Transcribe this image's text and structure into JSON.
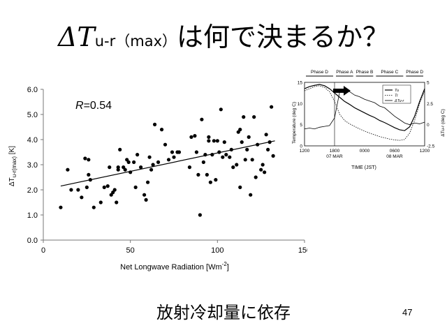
{
  "slide": {
    "title_delta": "ΔT",
    "title_subscript": "u-r（max）",
    "title_rest": "は何で決まるか？",
    "subtitle": "放射冷却量に依存",
    "page_number": "47"
  },
  "chart_data": [
    {
      "type": "scatter",
      "title": "",
      "annotation": "R=0.54",
      "annotation_R": "R",
      "annotation_value": "=0.54",
      "xlabel": "Net Longwave Radiation [Wm",
      "xlabel_sup": "-2",
      "xlabel_end": "]",
      "ylabel_prefix": "ΔT",
      "ylabel_sub": "u-r(max)",
      "ylabel_suffix": " [K]",
      "xlim": [
        0,
        150
      ],
      "ylim": [
        0.0,
        6.0
      ],
      "xticks": [
        "0",
        "50",
        "100",
        "150"
      ],
      "yticks": [
        "0.0",
        "1.0",
        "2.0",
        "3.0",
        "4.0",
        "5.0",
        "6.0"
      ],
      "grid": false,
      "trendline": {
        "x": [
          10,
          133
        ],
        "y": [
          2.15,
          3.95
        ]
      },
      "points": [
        [
          10,
          1.3
        ],
        [
          14,
          2.8
        ],
        [
          16,
          2.0
        ],
        [
          20,
          2.0
        ],
        [
          22,
          1.7
        ],
        [
          24,
          3.25
        ],
        [
          25,
          2.1
        ],
        [
          26,
          3.2
        ],
        [
          26,
          2.6
        ],
        [
          27,
          2.4
        ],
        [
          29,
          1.3
        ],
        [
          33,
          1.5
        ],
        [
          35,
          2.1
        ],
        [
          37,
          2.15
        ],
        [
          38,
          2.9
        ],
        [
          39,
          1.8
        ],
        [
          40,
          1.9
        ],
        [
          41,
          2.0
        ],
        [
          42,
          1.5
        ],
        [
          43,
          2.8
        ],
        [
          43,
          2.9
        ],
        [
          44,
          3.6
        ],
        [
          46,
          2.9
        ],
        [
          47,
          2.8
        ],
        [
          48,
          3.2
        ],
        [
          49,
          3.1
        ],
        [
          50,
          2.7
        ],
        [
          52,
          3.1
        ],
        [
          53,
          2.1
        ],
        [
          54,
          3.4
        ],
        [
          56,
          2.9
        ],
        [
          58,
          1.8
        ],
        [
          59,
          1.6
        ],
        [
          60,
          2.3
        ],
        [
          61,
          3.3
        ],
        [
          62,
          2.8
        ],
        [
          63,
          3.0
        ],
        [
          64,
          4.6
        ],
        [
          66,
          3.1
        ],
        [
          68,
          4.4
        ],
        [
          70,
          3.8
        ],
        [
          72,
          3.2
        ],
        [
          74,
          3.5
        ],
        [
          75,
          3.3
        ],
        [
          77,
          3.5
        ],
        [
          78,
          3.5
        ],
        [
          84,
          2.9
        ],
        [
          85,
          4.1
        ],
        [
          87,
          4.15
        ],
        [
          88,
          3.5
        ],
        [
          89,
          2.6
        ],
        [
          90,
          1.0
        ],
        [
          91,
          4.8
        ],
        [
          92,
          3.1
        ],
        [
          93,
          3.4
        ],
        [
          94,
          2.6
        ],
        [
          95,
          3.95
        ],
        [
          96,
          2.3
        ],
        [
          97,
          3.4
        ],
        [
          98,
          3.95
        ],
        [
          99,
          2.4
        ],
        [
          100,
          3.95
        ],
        [
          101,
          3.5
        ],
        [
          102,
          5.2
        ],
        [
          103,
          3.3
        ],
        [
          104,
          3.9
        ],
        [
          105,
          3.4
        ],
        [
          107,
          3.3
        ],
        [
          108,
          3.6
        ],
        [
          109,
          2.9
        ],
        [
          111,
          3.0
        ],
        [
          112,
          4.3
        ],
        [
          113,
          2.1
        ],
        [
          114,
          3.9
        ],
        [
          115,
          4.9
        ],
        [
          116,
          3.2
        ],
        [
          117,
          3.6
        ],
        [
          118,
          4.1
        ],
        [
          119,
          1.8
        ],
        [
          120,
          3.2
        ],
        [
          121,
          4.9
        ],
        [
          122,
          2.5
        ],
        [
          123,
          3.8
        ],
        [
          125,
          2.8
        ],
        [
          126,
          3.0
        ],
        [
          127,
          2.7
        ],
        [
          128,
          4.2
        ],
        [
          129,
          3.6
        ],
        [
          130,
          3.9
        ],
        [
          131,
          5.3
        ],
        [
          132,
          3.35
        ],
        [
          113,
          4.4
        ],
        [
          95,
          4.1
        ]
      ]
    },
    {
      "type": "line",
      "title": "",
      "phases": [
        "Phase D",
        "Phase A",
        "Phase B",
        "Phase C",
        "Phase D"
      ],
      "ylabel_left": "Temperature (deg C)",
      "ylabel_right": "ΔTu-r (deg C)",
      "xlabel": "TIME (JST)",
      "xticks": [
        "1200",
        "1800",
        "0000",
        "0600",
        "1200"
      ],
      "xticks_sub": [
        "",
        "07 MAR",
        "",
        "08 MAR",
        ""
      ],
      "yticks_left": [
        "0",
        "5",
        "10",
        "15"
      ],
      "yticks_right": [
        "-2.5",
        "0",
        "2.5",
        "5"
      ],
      "ylim_left": [
        0,
        15
      ],
      "ylim_right": [
        -2.5,
        5
      ],
      "legend": [
        "Tu",
        "Tr",
        "ΔTu-r"
      ],
      "legend_position": "top-right",
      "series": [
        {
          "name": "Tu",
          "x": [
            12,
            13,
            14,
            15,
            16,
            17,
            18,
            19,
            20,
            21,
            22,
            23,
            24,
            25,
            26,
            27,
            28,
            29,
            30,
            31,
            32,
            33,
            34,
            35,
            36
          ],
          "values": [
            13.5,
            14.0,
            14.3,
            14.5,
            14.2,
            13.5,
            12.5,
            11.5,
            10.5,
            9.8,
            9.0,
            8.4,
            7.8,
            7.2,
            6.7,
            6.0,
            5.5,
            4.9,
            4.3,
            3.8,
            3.6,
            4.5,
            7.0,
            10.5,
            13.5
          ]
        },
        {
          "name": "Tr",
          "x": [
            12,
            13,
            14,
            15,
            16,
            17,
            18,
            19,
            20,
            21,
            22,
            23,
            24,
            25,
            26,
            27,
            28,
            29,
            30,
            31,
            32,
            33,
            34,
            35,
            36
          ],
          "values": [
            13.0,
            13.5,
            14.0,
            14.2,
            13.8,
            12.8,
            10.5,
            7.5,
            6.0,
            5.2,
            4.6,
            4.0,
            3.5,
            3.0,
            2.6,
            2.2,
            1.9,
            1.6,
            1.4,
            1.3,
            1.5,
            3.0,
            6.0,
            10.0,
            13.0
          ]
        },
        {
          "name": "ΔTu-r",
          "x": [
            12,
            13,
            14,
            15,
            16,
            17,
            18,
            19,
            20,
            21,
            22,
            23,
            24,
            25,
            26,
            27,
            28,
            29,
            30,
            31,
            32,
            33,
            34,
            35,
            36
          ],
          "values": [
            -0.5,
            -0.4,
            -0.5,
            -0.3,
            -0.2,
            -0.1,
            0.8,
            3.8,
            4.2,
            3.9,
            3.5,
            3.3,
            3.0,
            2.8,
            2.6,
            2.2,
            2.0,
            1.5,
            1.0,
            0.6,
            0.2,
            0.0,
            0.2,
            0.1,
            0.3
          ]
        }
      ]
    }
  ]
}
